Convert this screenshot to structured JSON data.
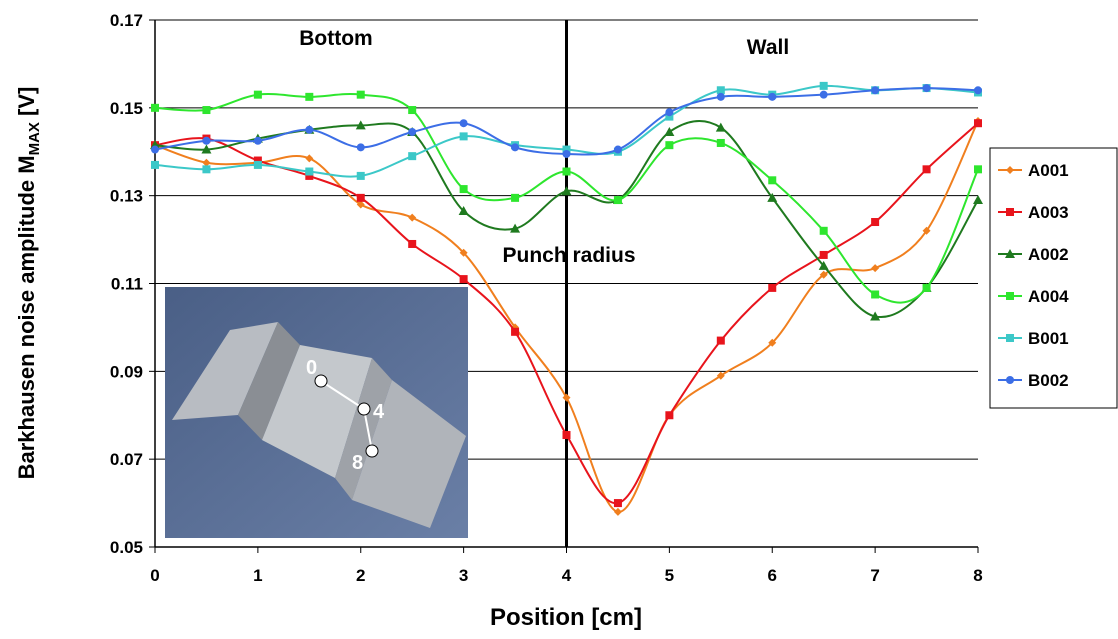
{
  "chart_data": {
    "type": "line",
    "xlabel": "Position [cm]",
    "ylabel": "Barkhausen noise amplitude M",
    "ylabel_sub": "MAX",
    "ylabel_suffix": " [V]",
    "annotations": [
      "Bottom",
      "Wall",
      "Punch radius"
    ],
    "divider_x": 4,
    "inset_labels": [
      "0",
      "4",
      "8"
    ],
    "x": [
      0,
      0.5,
      1,
      1.5,
      2,
      2.5,
      3,
      3.5,
      4,
      4.5,
      5,
      5.5,
      6,
      6.5,
      7,
      7.5,
      8
    ],
    "xlim": [
      0,
      8
    ],
    "xticks": [
      0,
      1,
      2,
      3,
      4,
      5,
      6,
      7,
      8
    ],
    "ylim": [
      0.05,
      0.17
    ],
    "yticks": [
      0.05,
      0.07,
      0.09,
      0.11,
      0.13,
      0.15,
      0.17
    ],
    "grid": true,
    "smooth": true,
    "legend": "right",
    "series": [
      {
        "name": "A001",
        "color": "#f07f1e",
        "marker": "diamond",
        "values": [
          0.1415,
          0.1375,
          0.1375,
          0.1385,
          0.128,
          0.125,
          0.117,
          0.1,
          0.084,
          0.058,
          0.08,
          0.089,
          0.0965,
          0.112,
          0.1135,
          0.122,
          0.147
        ]
      },
      {
        "name": "A003",
        "color": "#e8141c",
        "marker": "square",
        "values": [
          0.1415,
          0.143,
          0.138,
          0.1345,
          0.1295,
          0.119,
          0.111,
          0.099,
          0.0755,
          0.06,
          0.08,
          0.097,
          0.109,
          0.1165,
          0.124,
          0.136,
          0.1465
        ]
      },
      {
        "name": "A002",
        "color": "#1f7a1f",
        "marker": "triangle",
        "values": [
          0.1415,
          0.1405,
          0.143,
          0.145,
          0.146,
          0.1445,
          0.1265,
          0.1225,
          0.131,
          0.129,
          0.1445,
          0.1455,
          0.1295,
          0.114,
          0.1025,
          0.109,
          0.129
        ]
      },
      {
        "name": "A004",
        "color": "#2ee62e",
        "marker": "square",
        "values": [
          0.15,
          0.1495,
          0.153,
          0.1525,
          0.153,
          0.1495,
          0.1315,
          0.1295,
          0.1355,
          0.129,
          0.1415,
          0.142,
          0.1335,
          0.122,
          0.1075,
          0.109,
          0.136
        ]
      },
      {
        "name": "B001",
        "color": "#3cc8c8",
        "marker": "square",
        "values": [
          0.137,
          0.136,
          0.137,
          0.1355,
          0.1345,
          0.139,
          0.1435,
          0.1415,
          0.1405,
          0.14,
          0.148,
          0.154,
          0.153,
          0.155,
          0.154,
          0.1545,
          0.1535
        ]
      },
      {
        "name": "B002",
        "color": "#3c6ee6",
        "marker": "circle",
        "values": [
          0.1405,
          0.1425,
          0.1425,
          0.145,
          0.141,
          0.1445,
          0.1465,
          0.141,
          0.1395,
          0.1405,
          0.149,
          0.1525,
          0.1525,
          0.153,
          0.154,
          0.1545,
          0.154
        ]
      }
    ]
  }
}
